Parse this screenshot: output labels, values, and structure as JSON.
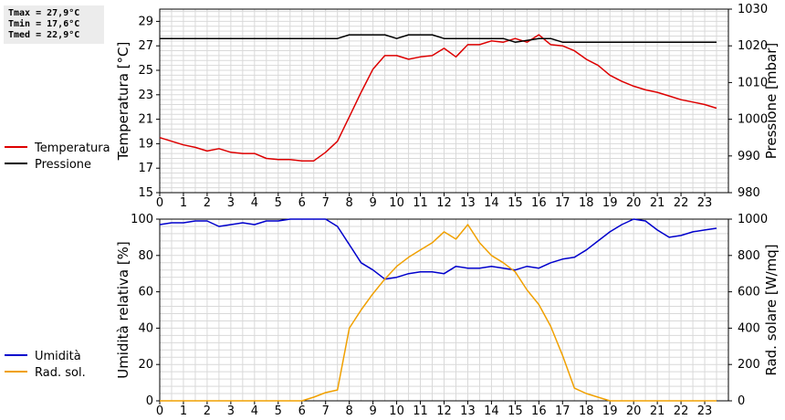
{
  "stats": {
    "tmax": "Tmax = 27,9°C",
    "tmin": "Tmin = 17,6°C",
    "tmed": "Tmed = 22,9°C"
  },
  "colors": {
    "temperatura": "#dd0000",
    "pressione": "#000000",
    "umidita": "#0000cc",
    "radiazione": "#f0a000",
    "grid": "#d9d9d9"
  },
  "chart_data": [
    {
      "type": "line",
      "ylabel_left": "Temperatura [°C]",
      "ylabel_right": "Pressione [mbar]",
      "ylim_left": [
        15,
        30
      ],
      "ylim_right": [
        980,
        1030
      ],
      "yticks_left": [
        15,
        17,
        19,
        21,
        23,
        25,
        27,
        29
      ],
      "yticks_right": [
        980,
        990,
        1000,
        1010,
        1020,
        1030
      ],
      "xlim": [
        0,
        24
      ],
      "xticks": [
        0,
        1,
        2,
        3,
        4,
        5,
        6,
        7,
        8,
        9,
        10,
        11,
        12,
        13,
        14,
        15,
        16,
        17,
        18,
        19,
        20,
        21,
        22,
        23
      ],
      "grid": true,
      "series": [
        {
          "name": "Temperatura",
          "axis": "left",
          "x": [
            0,
            0.5,
            1,
            1.5,
            2,
            2.5,
            3,
            3.5,
            4,
            4.5,
            5,
            5.5,
            6,
            6.5,
            7,
            7.5,
            8,
            8.5,
            9,
            9.5,
            10,
            10.5,
            11,
            11.5,
            12,
            12.5,
            13,
            13.5,
            14,
            14.5,
            15,
            15.5,
            16,
            16.5,
            17,
            17.5,
            18,
            18.5,
            19,
            19.5,
            20,
            20.5,
            21,
            21.5,
            22,
            22.5,
            23,
            23.5
          ],
          "values": [
            19.5,
            19.2,
            18.9,
            18.7,
            18.4,
            18.6,
            18.3,
            18.2,
            18.2,
            17.8,
            17.7,
            17.7,
            17.6,
            17.6,
            18.3,
            19.2,
            21.2,
            23.2,
            25.1,
            26.2,
            26.2,
            25.9,
            26.1,
            26.2,
            26.8,
            26.1,
            27.1,
            27.1,
            27.4,
            27.3,
            27.6,
            27.3,
            27.9,
            27.1,
            27.0,
            26.6,
            25.9,
            25.4,
            24.6,
            24.1,
            23.7,
            23.4,
            23.2,
            22.9,
            22.6,
            22.4,
            22.2,
            21.9
          ]
        },
        {
          "name": "Pressione",
          "axis": "right",
          "x": [
            0,
            7.5,
            8,
            9.5,
            10,
            10.5,
            11.5,
            12,
            14.5,
            15,
            16,
            16.5,
            17,
            23.5
          ],
          "values": [
            1022,
            1022,
            1023,
            1023,
            1022,
            1023,
            1023,
            1022,
            1022,
            1021,
            1022,
            1022,
            1021,
            1021
          ]
        }
      ]
    },
    {
      "type": "line",
      "ylabel_left": "Umidità relativa [%]",
      "ylabel_right": "Rad. solare [W/mq]",
      "ylim_left": [
        0,
        100
      ],
      "ylim_right": [
        0,
        1000
      ],
      "yticks_left": [
        0,
        20,
        40,
        60,
        80,
        100
      ],
      "yticks_right": [
        0,
        200,
        400,
        600,
        800,
        1000
      ],
      "xlim": [
        0,
        24
      ],
      "xticks": [
        0,
        1,
        2,
        3,
        4,
        5,
        6,
        7,
        8,
        9,
        10,
        11,
        12,
        13,
        14,
        15,
        16,
        17,
        18,
        19,
        20,
        21,
        22,
        23
      ],
      "grid": true,
      "series": [
        {
          "name": "Umidità",
          "axis": "left",
          "x": [
            0,
            0.5,
            1,
            1.5,
            2,
            2.5,
            3,
            3.5,
            4,
            4.5,
            5,
            5.5,
            6,
            6.5,
            7,
            7.5,
            8,
            8.5,
            9,
            9.5,
            10,
            10.5,
            11,
            11.5,
            12,
            12.5,
            13,
            13.5,
            14,
            14.5,
            15,
            15.5,
            16,
            16.5,
            17,
            17.5,
            18,
            18.5,
            19,
            19.5,
            20,
            20.5,
            21,
            21.5,
            22,
            22.5,
            23,
            23.5
          ],
          "values": [
            97,
            98,
            98,
            99,
            99,
            96,
            97,
            98,
            97,
            99,
            99,
            100,
            100,
            100,
            100,
            96,
            86,
            76,
            72,
            67,
            68,
            70,
            71,
            71,
            70,
            74,
            73,
            73,
            74,
            73,
            72,
            74,
            73,
            76,
            78,
            79,
            83,
            88,
            93,
            97,
            100,
            99,
            94,
            90,
            91,
            93,
            94,
            95
          ]
        },
        {
          "name": "Rad. sol.",
          "axis": "right",
          "x": [
            0,
            6,
            6.5,
            7,
            7.5,
            8,
            8.5,
            9,
            9.5,
            10,
            10.5,
            11,
            11.5,
            12,
            12.5,
            13,
            13.5,
            14,
            14.5,
            15,
            15.5,
            16,
            16.5,
            17,
            17.5,
            18,
            18.5,
            19,
            23.5
          ],
          "values": [
            0,
            0,
            20,
            45,
            60,
            400,
            500,
            590,
            670,
            740,
            790,
            830,
            870,
            930,
            890,
            970,
            870,
            800,
            760,
            710,
            610,
            530,
            410,
            250,
            70,
            40,
            20,
            0,
            0
          ]
        }
      ]
    }
  ]
}
